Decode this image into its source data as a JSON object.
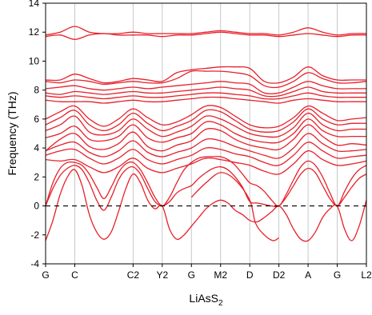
{
  "chart_data": {
    "type": "line",
    "title": "",
    "xlabel": "LiAsS",
    "xlabel_subscript": "2",
    "ylabel": "Frequency (THz)",
    "ylim": [
      -4,
      14
    ],
    "yticks": [
      -4,
      -2,
      0,
      2,
      4,
      6,
      8,
      10,
      12,
      14
    ],
    "ytick_labels": [
      "-4",
      "-2",
      "0",
      "2",
      "4",
      "6",
      "8",
      "10",
      "12",
      "14"
    ],
    "xlim": [
      0,
      11
    ],
    "high_symmetry_points": [
      {
        "label": "G",
        "x": 0
      },
      {
        "label": "C",
        "x": 1
      },
      {
        "label": "C2",
        "x": 3
      },
      {
        "label": "Y2",
        "x": 4
      },
      {
        "label": "G",
        "x": 5
      },
      {
        "label": "M2",
        "x": 6
      },
      {
        "label": "D",
        "x": 7
      },
      {
        "label": "D2",
        "x": 8
      },
      {
        "label": "A",
        "x": 9
      },
      {
        "label": "G",
        "x": 10
      },
      {
        "label": "L2",
        "x": 11
      }
    ],
    "zero_line": {
      "y": 0,
      "style": "dashed",
      "color": "#000000"
    },
    "grid": "vertical lines at high-symmetry points",
    "band_color": "#e8202a",
    "series": [
      {
        "x": [
          0,
          0.5,
          1,
          1.5,
          2,
          2.5,
          3,
          3.5,
          4,
          4.5,
          5,
          5.5,
          6,
          6.5,
          7,
          7.5,
          8,
          8.5,
          9,
          9.5,
          10,
          10.5,
          11
        ],
        "values": [
          11.8,
          12.0,
          12.4,
          12.0,
          11.9,
          11.9,
          12.0,
          11.9,
          11.9,
          11.9,
          11.9,
          12.0,
          12.1,
          12.0,
          11.9,
          11.9,
          11.8,
          12.0,
          12.3,
          12.0,
          11.8,
          11.9,
          11.9
        ]
      },
      {
        "x": [
          0,
          0.5,
          1,
          1.5,
          2,
          2.5,
          3,
          3.5,
          4,
          4.5,
          5,
          5.5,
          6,
          6.5,
          7,
          7.5,
          8,
          8.5,
          9,
          9.5,
          10,
          10.5,
          11
        ],
        "values": [
          11.7,
          11.8,
          11.5,
          11.8,
          11.9,
          11.8,
          11.8,
          11.8,
          11.7,
          11.8,
          11.8,
          11.9,
          12.0,
          11.9,
          11.8,
          11.8,
          11.7,
          11.8,
          11.9,
          11.8,
          11.7,
          11.8,
          11.8
        ]
      },
      {
        "x": [
          0,
          0.5,
          1,
          1.5,
          2,
          2.5,
          3,
          3.5,
          4,
          4.5,
          5,
          5.5,
          6,
          6.5,
          7,
          7.5,
          8,
          8.5,
          9,
          9.5,
          10,
          10.5,
          11
        ],
        "values": [
          8.7,
          8.7,
          9.1,
          8.8,
          8.5,
          8.6,
          8.8,
          8.7,
          8.6,
          9.2,
          9.4,
          9.5,
          9.6,
          9.6,
          9.5,
          8.6,
          8.5,
          8.9,
          9.6,
          9.0,
          8.7,
          8.7,
          8.7
        ]
      },
      {
        "x": [
          0,
          0.5,
          1,
          1.5,
          2,
          2.5,
          3,
          3.5,
          4,
          4.5,
          5,
          5.5,
          6,
          6.5,
          7,
          7.5,
          8,
          8.5,
          9,
          9.5,
          10,
          10.5,
          11
        ],
        "values": [
          8.6,
          8.5,
          8.7,
          8.6,
          8.4,
          8.5,
          8.6,
          8.5,
          8.5,
          8.8,
          9.3,
          9.3,
          9.3,
          9.2,
          9.0,
          8.3,
          8.2,
          8.6,
          9.2,
          8.8,
          8.5,
          8.5,
          8.6
        ]
      },
      {
        "x": [
          0,
          0.5,
          1,
          1.5,
          2,
          2.5,
          3,
          3.5,
          4,
          4.5,
          5,
          5.5,
          6,
          6.5,
          7,
          7.5,
          8,
          8.5,
          9,
          9.5,
          10,
          10.5,
          11
        ],
        "values": [
          8.1,
          8.2,
          8.3,
          8.1,
          8.0,
          8.1,
          8.2,
          8.1,
          8.2,
          8.3,
          8.4,
          8.5,
          8.6,
          8.5,
          8.4,
          7.8,
          7.8,
          8.2,
          8.6,
          8.3,
          8.1,
          8.1,
          8.1
        ]
      },
      {
        "x": [
          0,
          0.5,
          1,
          1.5,
          2,
          2.5,
          3,
          3.5,
          4,
          4.5,
          5,
          5.5,
          6,
          6.5,
          7,
          7.5,
          8,
          8.5,
          9,
          9.5,
          10,
          10.5,
          11
        ],
        "values": [
          7.8,
          7.7,
          7.9,
          7.8,
          7.7,
          7.8,
          7.9,
          7.8,
          7.8,
          7.9,
          8.0,
          8.1,
          8.2,
          8.1,
          8.0,
          7.6,
          7.6,
          7.9,
          8.2,
          7.9,
          7.8,
          7.8,
          7.8
        ]
      },
      {
        "x": [
          0,
          0.5,
          1,
          1.5,
          2,
          2.5,
          3,
          3.5,
          4,
          4.5,
          5,
          5.5,
          6,
          6.5,
          7,
          7.5,
          8,
          8.5,
          9,
          9.5,
          10,
          10.5,
          11
        ],
        "values": [
          7.6,
          7.5,
          7.6,
          7.5,
          7.4,
          7.5,
          7.6,
          7.5,
          7.5,
          7.6,
          7.7,
          7.8,
          7.8,
          7.7,
          7.6,
          7.4,
          7.4,
          7.6,
          7.8,
          7.6,
          7.5,
          7.5,
          7.5
        ]
      },
      {
        "x": [
          0,
          0.5,
          1,
          1.5,
          2,
          2.5,
          3,
          3.5,
          4,
          4.5,
          5,
          5.5,
          6,
          6.5,
          7,
          7.5,
          8,
          8.5,
          9,
          9.5,
          10,
          10.5,
          11
        ],
        "values": [
          7.3,
          7.2,
          7.2,
          7.2,
          7.1,
          7.2,
          7.3,
          7.2,
          7.2,
          7.3,
          7.4,
          7.5,
          7.5,
          7.4,
          7.3,
          7.2,
          7.1,
          7.3,
          7.4,
          7.3,
          7.2,
          7.2,
          7.2
        ]
      },
      {
        "x": [
          0,
          0.5,
          1,
          1.5,
          2,
          2.5,
          3,
          3.5,
          4,
          4.5,
          5,
          5.5,
          6,
          6.5,
          7,
          7.5,
          8,
          8.5,
          9,
          9.5,
          10,
          10.5,
          11
        ],
        "values": [
          6.0,
          6.5,
          6.9,
          6.0,
          5.5,
          6.0,
          6.7,
          6.1,
          5.6,
          5.8,
          6.3,
          6.9,
          6.8,
          6.2,
          5.6,
          5.4,
          5.5,
          6.1,
          6.9,
          6.4,
          5.9,
          6.0,
          6.1
        ]
      },
      {
        "x": [
          0,
          0.5,
          1,
          1.5,
          2,
          2.5,
          3,
          3.5,
          4,
          4.5,
          5,
          5.5,
          6,
          6.5,
          7,
          7.5,
          8,
          8.5,
          9,
          9.5,
          10,
          10.5,
          11
        ],
        "values": [
          5.6,
          6.1,
          6.6,
          5.6,
          5.2,
          5.6,
          6.4,
          5.7,
          5.2,
          5.5,
          5.9,
          6.6,
          6.5,
          5.9,
          5.3,
          5.1,
          5.2,
          5.8,
          6.7,
          6.0,
          5.6,
          5.7,
          5.7
        ]
      },
      {
        "x": [
          0,
          0.5,
          1,
          1.5,
          2,
          2.5,
          3,
          3.5,
          4,
          4.5,
          5,
          5.5,
          6,
          6.5,
          7,
          7.5,
          8,
          8.5,
          9,
          9.5,
          10,
          10.5,
          11
        ],
        "values": [
          5.2,
          5.6,
          6.2,
          5.1,
          4.9,
          5.2,
          6.0,
          5.3,
          4.8,
          5.1,
          5.5,
          6.2,
          6.0,
          5.5,
          5.0,
          4.8,
          4.8,
          5.4,
          6.4,
          5.6,
          5.2,
          5.3,
          5.3
        ]
      },
      {
        "x": [
          0,
          0.5,
          1,
          1.5,
          2,
          2.5,
          3,
          3.5,
          4,
          4.5,
          5,
          5.5,
          6,
          6.5,
          7,
          7.5,
          8,
          8.5,
          9,
          9.5,
          10,
          10.5,
          11
        ],
        "values": [
          4.7,
          5.0,
          5.5,
          4.6,
          4.5,
          4.8,
          5.6,
          4.7,
          4.4,
          4.7,
          5.0,
          5.8,
          5.6,
          5.0,
          4.6,
          4.4,
          4.4,
          5.0,
          6.0,
          5.2,
          4.8,
          4.8,
          4.8
        ]
      },
      {
        "x": [
          0,
          0.5,
          1,
          1.5,
          2,
          2.5,
          3,
          3.5,
          4,
          4.5,
          5,
          5.5,
          6,
          6.5,
          7,
          7.5,
          8,
          8.5,
          9,
          9.5,
          10,
          10.5,
          11
        ],
        "values": [
          3.8,
          4.6,
          5.0,
          4.1,
          3.9,
          4.3,
          5.1,
          4.1,
          3.8,
          4.2,
          4.5,
          5.3,
          5.2,
          4.6,
          4.2,
          4.0,
          3.9,
          4.6,
          5.6,
          4.8,
          4.2,
          4.3,
          4.2
        ]
      },
      {
        "x": [
          0,
          0.5,
          1,
          1.5,
          2,
          2.5,
          3,
          3.5,
          4,
          4.5,
          5,
          5.5,
          6,
          6.5,
          7,
          7.5,
          8,
          8.5,
          9,
          9.5,
          10,
          10.5,
          11
        ],
        "values": [
          3.8,
          4.2,
          4.4,
          3.7,
          3.4,
          3.8,
          4.5,
          3.7,
          3.4,
          3.7,
          4.0,
          4.6,
          4.5,
          4.1,
          3.8,
          3.5,
          3.3,
          4.0,
          5.0,
          4.3,
          3.8,
          3.8,
          3.9
        ]
      },
      {
        "x": [
          0,
          0.5,
          1,
          1.5,
          2,
          2.5,
          3,
          3.5,
          4,
          4.5,
          5,
          5.5,
          6,
          6.5,
          7,
          7.5,
          8,
          8.5,
          9,
          9.5,
          10,
          10.5,
          11
        ],
        "values": [
          3.5,
          3.8,
          3.9,
          3.3,
          2.9,
          3.3,
          3.9,
          3.2,
          2.9,
          3.2,
          3.5,
          4.0,
          3.9,
          3.6,
          3.4,
          3.0,
          2.8,
          3.5,
          4.4,
          3.8,
          3.3,
          3.4,
          3.5
        ]
      },
      {
        "x": [
          0,
          0.5,
          1,
          1.5,
          2,
          2.5,
          3,
          3.5,
          4,
          4.5,
          5,
          5.5,
          6,
          6.5,
          7,
          7.5,
          8,
          8.5,
          9,
          9.5,
          10,
          10.5,
          11
        ],
        "values": [
          3.2,
          3.1,
          3.2,
          2.7,
          2.3,
          2.7,
          3.3,
          2.6,
          2.3,
          2.6,
          2.9,
          3.3,
          3.2,
          3.0,
          2.8,
          2.4,
          2.2,
          2.9,
          3.8,
          3.2,
          2.8,
          2.9,
          3.1
        ]
      },
      {
        "x": [
          0,
          0.25,
          0.5,
          0.75,
          1,
          1.25,
          1.5,
          1.75,
          2,
          2.25,
          2.5,
          2.75,
          3,
          3.25,
          3.5,
          3.75,
          4,
          4.25,
          4.5,
          4.75,
          5,
          5.25,
          5.5,
          5.75,
          6,
          6.25,
          6.5,
          6.75,
          7,
          7.25,
          7.5,
          7.75,
          8,
          8.25,
          8.5,
          8.75,
          9,
          9.25,
          9.5,
          9.75,
          10,
          10.25,
          10.5,
          10.75,
          11
        ],
        "values": [
          0,
          1.6,
          2.6,
          3.0,
          3.0,
          2.8,
          2.2,
          1.3,
          0.5,
          1.3,
          2.3,
          2.9,
          3.0,
          2.5,
          1.6,
          0.6,
          0,
          0.6,
          1.6,
          2.5,
          3.0,
          3.3,
          3.4,
          3.4,
          3.4,
          3.2,
          2.8,
          2.2,
          1.6,
          1.4,
          1.0,
          0.4,
          0,
          0.8,
          1.8,
          2.7,
          3.1,
          2.8,
          2.0,
          0.9,
          0,
          1.0,
          1.9,
          2.5,
          2.8
        ]
      },
      {
        "x": [
          0,
          0.25,
          0.5,
          0.75,
          1,
          1.25,
          1.5,
          1.75,
          2,
          2.25,
          2.5,
          2.75,
          3,
          3.25,
          3.5,
          3.75,
          4,
          4.25,
          4.5,
          4.75,
          5,
          5.25,
          5.5,
          5.75,
          6,
          6.25,
          6.5,
          6.75,
          7,
          7.25,
          7.5,
          7.75,
          8,
          8.25,
          8.5,
          8.75,
          9,
          9.25,
          9.5,
          9.75,
          10,
          10.25,
          10.5,
          10.75,
          11
        ],
        "values": [
          0,
          1.2,
          2.1,
          2.6,
          2.8,
          2.5,
          1.6,
          0.4,
          -0.3,
          0.6,
          1.8,
          2.5,
          2.7,
          2.2,
          1.2,
          0.3,
          0,
          0.3,
          0.9,
          1.2,
          1.4,
          1.9,
          2.3,
          2.6,
          2.7,
          2.5,
          2.0,
          1.3,
          0.3,
          0.2,
          0.1,
          0,
          0,
          0.6,
          1.4,
          2.2,
          2.6,
          2.3,
          1.4,
          0.5,
          0,
          0.6,
          1.3,
          1.9,
          2.2
        ]
      },
      {
        "x": [
          0,
          0.25,
          0.5,
          0.75,
          1,
          1.25,
          1.5,
          1.75,
          2,
          2.25,
          2.5,
          2.75,
          3,
          3.25,
          3.5,
          3.75,
          4,
          4.25,
          4.5,
          4.75,
          5,
          5.25,
          5.5,
          5.75,
          6,
          6.25,
          6.5,
          6.75,
          7,
          7.25,
          7.5,
          7.75,
          8,
          8.25,
          8.5,
          8.75,
          9,
          9.25,
          9.5,
          9.75,
          10,
          10.25,
          10.5,
          10.75,
          11
        ],
        "values": [
          -2.4,
          -1.0,
          0.8,
          2.0,
          2.5,
          1.4,
          -0.6,
          -1.8,
          -2.3,
          -1.8,
          -0.4,
          1.2,
          2.2,
          1.6,
          0.4,
          -0.2,
          0,
          -1.6,
          -2.3,
          -2.0,
          -1.4,
          -0.8,
          -0.2,
          0.2,
          0.4,
          0.2,
          -0.3,
          -0.6,
          -1.0,
          -1.1,
          -0.8,
          -0.4,
          0,
          -0.6,
          -1.6,
          -2.3,
          -2.4,
          -1.8,
          -0.8,
          -0.2,
          0,
          -1.6,
          -2.4,
          -1.4,
          0.4
        ]
      },
      {
        "x": [
          5,
          5.5,
          6,
          6.5,
          7,
          7.2,
          7.5,
          7.8,
          8
        ],
        "values": [
          0.6,
          1.6,
          2.3,
          1.8,
          0.4,
          -1.2,
          -2.0,
          -2.4,
          -2.2
        ]
      }
    ]
  }
}
